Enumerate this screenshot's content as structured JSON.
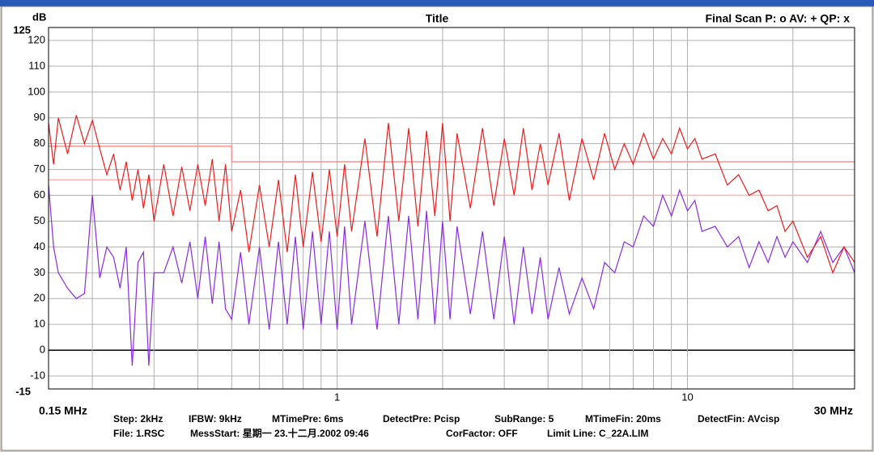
{
  "chart_data": {
    "type": "line",
    "title": "Title",
    "ylabel": "dB",
    "scan_legend": "Final Scan P: o  AV: +  QP: x",
    "xscale": "log",
    "grid": true,
    "xlim": [
      0.15,
      30
    ],
    "ylim": [
      -15,
      125
    ],
    "xticks": [
      {
        "value": 0.15,
        "label": "0.15 MHz"
      },
      1,
      10,
      {
        "value": 30,
        "label": "30 MHz"
      }
    ],
    "xgrid": [
      0.2,
      0.3,
      0.4,
      0.5,
      0.6,
      0.7,
      0.8,
      0.9,
      2,
      3,
      4,
      5,
      6,
      7,
      8,
      9,
      20
    ],
    "yticks": [
      -15,
      -10,
      0,
      10,
      20,
      30,
      40,
      50,
      60,
      70,
      80,
      90,
      100,
      110,
      120,
      125
    ],
    "x": [
      0.15,
      0.155,
      0.16,
      0.17,
      0.18,
      0.19,
      0.2,
      0.21,
      0.22,
      0.23,
      0.24,
      0.25,
      0.26,
      0.27,
      0.28,
      0.29,
      0.3,
      0.32,
      0.34,
      0.36,
      0.38,
      0.4,
      0.42,
      0.44,
      0.46,
      0.48,
      0.5,
      0.53,
      0.56,
      0.6,
      0.64,
      0.68,
      0.72,
      0.76,
      0.8,
      0.85,
      0.9,
      0.95,
      1.0,
      1.05,
      1.1,
      1.2,
      1.3,
      1.4,
      1.5,
      1.6,
      1.7,
      1.8,
      1.9,
      2.0,
      2.1,
      2.2,
      2.4,
      2.6,
      2.8,
      3.0,
      3.2,
      3.4,
      3.6,
      3.8,
      4.0,
      4.3,
      4.6,
      5.0,
      5.4,
      5.8,
      6.2,
      6.6,
      7.0,
      7.5,
      8.0,
      8.5,
      9.0,
      9.5,
      10,
      10.5,
      11,
      12,
      13,
      14,
      15,
      16,
      17,
      18,
      19,
      20,
      22,
      24,
      26,
      28,
      30
    ],
    "series": [
      {
        "color": "#ee1c1c",
        "values": [
          88,
          72,
          90,
          76,
          91,
          80,
          89,
          78,
          68,
          76,
          62,
          73,
          58,
          70,
          55,
          68,
          50,
          72,
          52,
          71,
          54,
          72,
          56,
          74,
          50,
          72,
          46,
          62,
          38,
          64,
          40,
          66,
          38,
          68,
          40,
          69,
          42,
          70,
          44,
          72,
          46,
          82,
          44,
          88,
          50,
          86,
          48,
          85,
          52,
          88,
          50,
          84,
          55,
          86,
          56,
          82,
          60,
          86,
          62,
          80,
          64,
          84,
          58,
          82,
          66,
          84,
          70,
          80,
          72,
          84,
          74,
          82,
          76,
          86,
          78,
          82,
          74,
          76,
          64,
          68,
          60,
          62,
          54,
          56,
          46,
          50,
          36,
          44,
          30,
          40,
          34
        ]
      },
      {
        "color": "#8a2be2",
        "values": [
          64,
          40,
          30,
          24,
          20,
          22,
          60,
          28,
          40,
          36,
          24,
          40,
          -6,
          34,
          38,
          -6,
          30,
          30,
          40,
          26,
          42,
          20,
          44,
          18,
          42,
          16,
          12,
          38,
          10,
          40,
          8,
          42,
          10,
          44,
          8,
          46,
          10,
          46,
          8,
          48,
          10,
          50,
          8,
          52,
          10,
          52,
          12,
          54,
          10,
          50,
          12,
          48,
          14,
          46,
          12,
          44,
          10,
          40,
          14,
          36,
          12,
          32,
          14,
          28,
          16,
          34,
          30,
          42,
          40,
          52,
          48,
          60,
          52,
          62,
          54,
          58,
          46,
          48,
          40,
          44,
          32,
          42,
          34,
          44,
          36,
          42,
          34,
          46,
          34,
          40,
          30
        ]
      },
      {
        "color": "#ff9090",
        "x": [
          0.15,
          0.5,
          0.5,
          30
        ],
        "values": [
          79,
          79,
          73,
          73
        ]
      },
      {
        "color": "#ffb0b0",
        "x": [
          0.15,
          0.5,
          0.5,
          30
        ],
        "values": [
          66,
          66,
          60,
          60
        ]
      }
    ],
    "footer": {
      "line1": [
        "Step: 2kHz",
        "IFBW: 9kHz",
        "MTimePre: 6ms",
        "DetectPre: Pcisp",
        "SubRange: 5",
        "MTimeFin: 20ms",
        "DetectFin: AVcisp"
      ],
      "line2": [
        "File: 1.RSC",
        "MessStart: 星期一 23.十二月.2002 09:46",
        "CorFactor: OFF",
        "Limit Line: C_22A.LIM"
      ]
    }
  }
}
